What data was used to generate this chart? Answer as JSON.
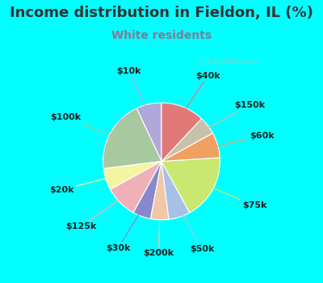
{
  "title": "Income distribution in Fieldon, IL (%)",
  "subtitle": "White residents",
  "outer_bg": "#00FFFF",
  "chart_bg_top_left": "#e8f8f0",
  "chart_bg": "#e0f5ec",
  "watermark": "City-Data.com",
  "labels": [
    "$10k",
    "$100k",
    "$20k",
    "$125k",
    "$30k",
    "$200k",
    "$50k",
    "$75k",
    "$60k",
    "$150k",
    "$40k"
  ],
  "sizes": [
    7,
    20,
    6,
    9,
    5,
    5,
    6,
    18,
    7,
    5,
    12
  ],
  "colors": [
    "#b0a8d8",
    "#a8c8a0",
    "#f5f5a0",
    "#f0b0b8",
    "#8888cc",
    "#f0c8a8",
    "#a8c0e8",
    "#c8e870",
    "#f0a060",
    "#c8c0a8",
    "#e07878"
  ],
  "startangle": 90,
  "title_fontsize": 13,
  "subtitle_fontsize": 10,
  "label_fontsize": 8,
  "title_color": "#333333",
  "subtitle_color": "#887799"
}
